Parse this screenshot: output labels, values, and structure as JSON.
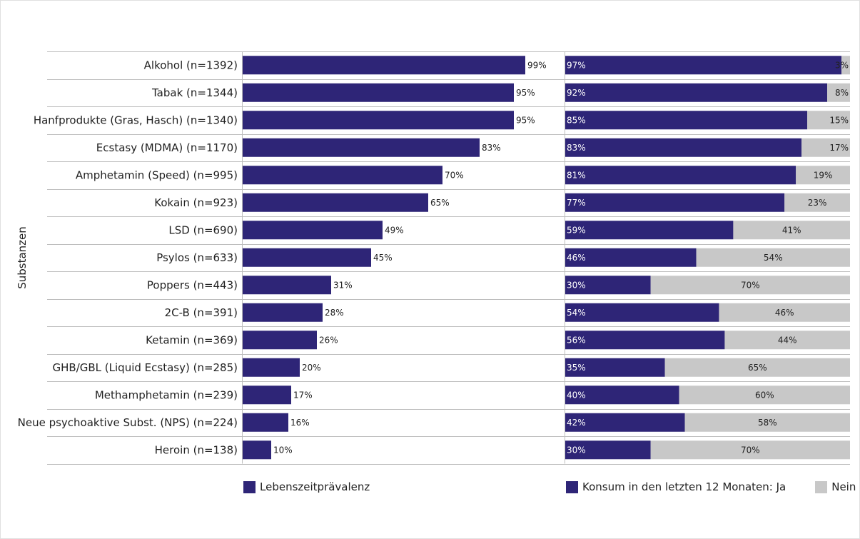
{
  "chart_data": [
    {
      "type": "bar",
      "orientation": "horizontal",
      "categories": [
        "Alkohol (n=1392)",
        "Tabak (n=1344)",
        "Hanfprodukte (Gras, Hasch) (n=1340)",
        "Ecstasy (MDMA) (n=1170)",
        "Amphetamin (Speed) (n=995)",
        "Kokain (n=923)",
        "LSD (n=690)",
        "Psylos (n=633)",
        "Poppers (n=443)",
        "2C-B (n=391)",
        "Ketamin (n=369)",
        "GHB/GBL (Liquid Ecstasy) (n=285)",
        "Methamphetamin (n=239)",
        "Neue psychoaktive Subst. (NPS) (n=224)",
        "Heroin (n=138)"
      ],
      "series": [
        {
          "name": "Lebenszeitprävalenz",
          "values": [
            99,
            95,
            95,
            83,
            70,
            65,
            49,
            45,
            31,
            28,
            26,
            20,
            17,
            16,
            10
          ]
        }
      ],
      "value_labels": [
        "99%",
        "95%",
        "95%",
        "83%",
        "70%",
        "65%",
        "49%",
        "45%",
        "31%",
        "28%",
        "26%",
        "20%",
        "17%",
        "16%",
        "10%"
      ],
      "xlim": [
        0,
        100
      ],
      "ylabel": "Substanzen",
      "grid": false,
      "legend_position": "bottom"
    },
    {
      "type": "bar",
      "orientation": "horizontal",
      "stacked": true,
      "categories": [
        "Alkohol (n=1392)",
        "Tabak (n=1344)",
        "Hanfprodukte (Gras, Hasch) (n=1340)",
        "Ecstasy (MDMA) (n=1170)",
        "Amphetamin (Speed) (n=995)",
        "Kokain (n=923)",
        "LSD (n=690)",
        "Psylos (n=633)",
        "Poppers (n=443)",
        "2C-B (n=391)",
        "Ketamin (n=369)",
        "GHB/GBL (Liquid Ecstasy) (n=285)",
        "Methamphetamin (n=239)",
        "Neue psychoaktive Subst. (NPS) (n=224)",
        "Heroin (n=138)"
      ],
      "series": [
        {
          "name": "Konsum in den letzten 12 Monaten: Ja",
          "values": [
            97,
            92,
            85,
            83,
            81,
            77,
            59,
            46,
            30,
            54,
            56,
            35,
            40,
            42,
            30
          ]
        },
        {
          "name": "Nein",
          "values": [
            3,
            8,
            15,
            17,
            19,
            23,
            41,
            54,
            70,
            46,
            44,
            65,
            60,
            58,
            70
          ]
        }
      ],
      "ja_labels": [
        "97%",
        "92%",
        "85%",
        "83%",
        "81%",
        "77%",
        "59%",
        "46%",
        "30%",
        "54%",
        "56%",
        "35%",
        "40%",
        "42%",
        "30%"
      ],
      "nein_labels": [
        "3%",
        "8%",
        "15%",
        "17%",
        "19%",
        "23%",
        "41%",
        "54%",
        "70%",
        "46%",
        "44%",
        "65%",
        "60%",
        "58%",
        "70%"
      ],
      "xlim": [
        0,
        100
      ],
      "grid": false,
      "legend_position": "bottom"
    }
  ],
  "axis_title": "Substanzen",
  "legend": {
    "left_label": "Lebenszeitprävalenz",
    "right_yes_label": "Konsum in den letzten 12 Monaten: Ja",
    "right_no_label": "Nein"
  },
  "colors": {
    "primary": "#2e2577",
    "secondary": "#c8c8c8",
    "separator": "#bdbdbd",
    "text": "#222222"
  }
}
